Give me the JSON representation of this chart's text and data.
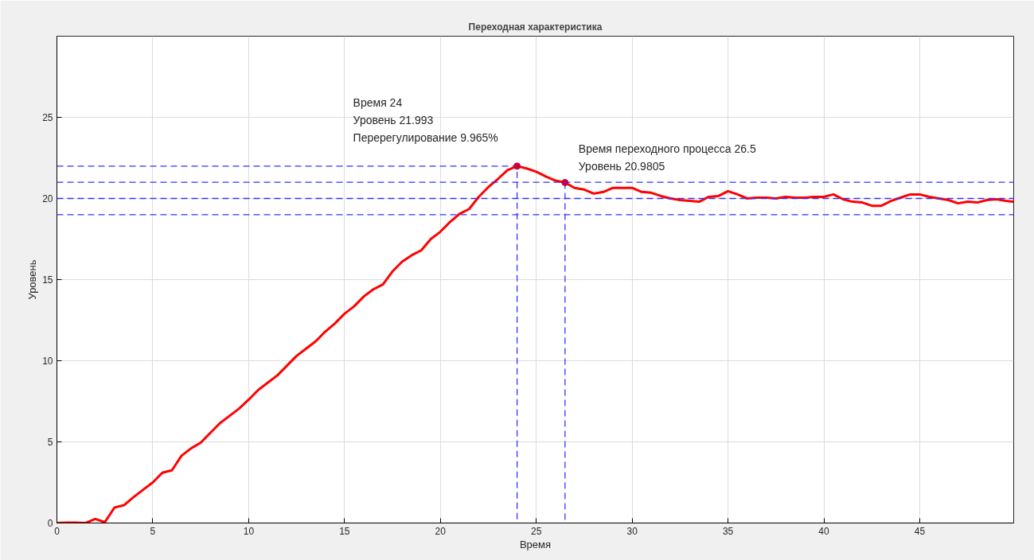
{
  "chart_data": {
    "type": "line",
    "title": "Переходная характеристика",
    "xlabel": "Время",
    "ylabel": "Уровень",
    "xlim": [
      0,
      49.9
    ],
    "ylim": [
      0,
      30
    ],
    "xticks": [
      0,
      5,
      10,
      15,
      20,
      25,
      30,
      35,
      40,
      45
    ],
    "yticks": [
      0,
      5,
      10,
      15,
      20,
      25
    ],
    "grid": true,
    "series": [
      {
        "color": "#ff0000",
        "x": [
          0,
          0.5,
          1,
          1.5,
          2,
          2.5,
          3,
          3.5,
          4,
          4.5,
          5,
          5.5,
          6,
          6.5,
          7,
          7.5,
          8,
          8.5,
          9,
          9.5,
          10,
          10.5,
          11,
          11.5,
          12,
          12.5,
          13,
          13.5,
          14,
          14.5,
          15,
          15.5,
          16,
          16.5,
          17,
          17.5,
          18,
          18.5,
          19,
          19.5,
          20,
          20.5,
          21,
          21.5,
          22,
          22.5,
          23,
          23.5,
          24,
          24.5,
          25,
          25.5,
          26,
          26.5,
          27,
          27.5,
          28,
          28.5,
          29,
          29.5,
          30,
          30.5,
          31,
          31.5,
          32,
          32.5,
          33,
          33.5,
          34,
          34.5,
          35,
          35.5,
          36,
          36.5,
          37,
          37.5,
          38,
          38.5,
          39,
          39.5,
          40,
          40.5,
          41,
          41.5,
          42,
          42.5,
          43,
          43.5,
          44,
          44.5,
          45,
          45.5,
          46,
          46.5,
          47,
          47.5,
          48,
          48.5,
          49,
          49.5,
          49.9
        ],
        "values": [
          0,
          0.02,
          0.03,
          0,
          0.25,
          0.05,
          0.95,
          1.1,
          1.6,
          2.05,
          2.5,
          3.1,
          3.25,
          4.15,
          4.6,
          4.95,
          5.55,
          6.15,
          6.6,
          7.05,
          7.6,
          8.2,
          8.65,
          9.1,
          9.7,
          10.3,
          10.75,
          11.2,
          11.8,
          12.3,
          12.9,
          13.35,
          13.95,
          14.4,
          14.7,
          15.5,
          16.1,
          16.5,
          16.8,
          17.5,
          17.95,
          18.55,
          19.05,
          19.35,
          20.1,
          20.7,
          21.2,
          21.75,
          21.993,
          21.85,
          21.65,
          21.35,
          21.1,
          20.9805,
          20.65,
          20.55,
          20.3,
          20.4,
          20.65,
          20.65,
          20.65,
          20.4,
          20.35,
          20.15,
          20.0,
          19.9,
          19.85,
          19.8,
          20.1,
          20.15,
          20.45,
          20.25,
          20.0,
          20.05,
          20.05,
          20.0,
          20.1,
          20.05,
          20.05,
          20.1,
          20.1,
          20.25,
          19.95,
          19.8,
          19.75,
          19.55,
          19.55,
          19.85,
          20.05,
          20.25,
          20.25,
          20.1,
          20.0,
          19.9,
          19.7,
          19.8,
          19.75,
          19.9,
          19.95,
          19.85,
          19.8
        ],
        "line_style": "solid",
        "marker": "none"
      },
      {
        "type": "line",
        "color": "#3333ff",
        "x": [
          0,
          24,
          24
        ],
        "values": [
          21.993,
          21.993,
          0
        ],
        "line_style": "dashed",
        "marker": "none"
      },
      {
        "type": "line",
        "color": "#3333ff",
        "x": [
          26.5,
          26.5
        ],
        "values": [
          20.9805,
          0
        ],
        "line_style": "dashed",
        "marker": "none"
      },
      {
        "type": "scatter",
        "color": "#cc0033",
        "x": [
          24,
          26.5
        ],
        "values": [
          21.993,
          20.9805
        ],
        "marker": "circle"
      }
    ],
    "ref_lines": [
      {
        "axis": "y",
        "value": 21,
        "color": "#3333ff",
        "line_style": "dashed"
      },
      {
        "axis": "y",
        "value": 20,
        "color": "#3333ff",
        "line_style": "dashed"
      },
      {
        "axis": "y",
        "value": 19,
        "color": "#3333ff",
        "line_style": "dashed"
      }
    ],
    "annotations": [
      {
        "text": "Время 24\nУровень 21.993\nПеререгулирование 9.965%",
        "x": 24,
        "y": 21.993
      },
      {
        "text": "Время переходного процесса 26.5\nУровень 20.9805",
        "x": 26.5,
        "y": 20.9805
      }
    ]
  }
}
